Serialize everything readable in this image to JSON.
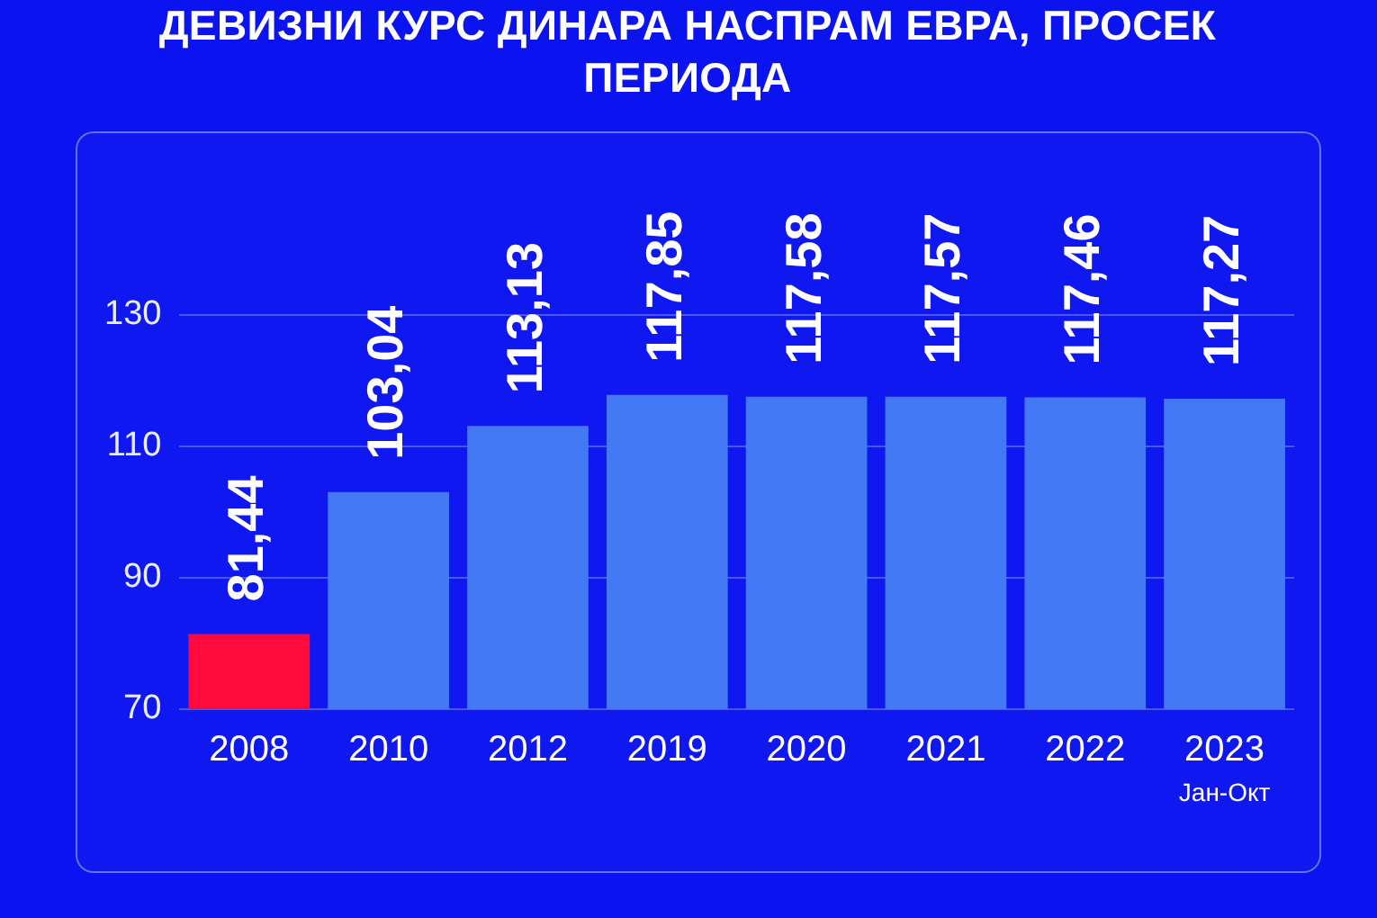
{
  "chart_data": {
    "type": "bar",
    "title": "ДЕВИЗНИ КУРС ДИНАРА НАСПРАМ ЕВРА, ПРОСЕК ПЕРИОДА",
    "categories": [
      "2008",
      "2010",
      "2012",
      "2019",
      "2020",
      "2021",
      "2022",
      "2023"
    ],
    "values": [
      81.44,
      103.04,
      113.13,
      117.85,
      117.58,
      117.57,
      117.46,
      117.27
    ],
    "value_labels": [
      "81,44",
      "103,04",
      "113,13",
      "117,85",
      "117,58",
      "117,57",
      "117,46",
      "117,27"
    ],
    "colors": [
      "#ff0a3c",
      "#4479f5",
      "#4479f5",
      "#4479f5",
      "#4479f5",
      "#4479f5",
      "#4479f5",
      "#4479f5"
    ],
    "ylim": [
      70,
      130
    ],
    "yticks": [
      70,
      90,
      110,
      130
    ],
    "grid": "y",
    "annotations": [
      "Јан-Окт"
    ]
  }
}
